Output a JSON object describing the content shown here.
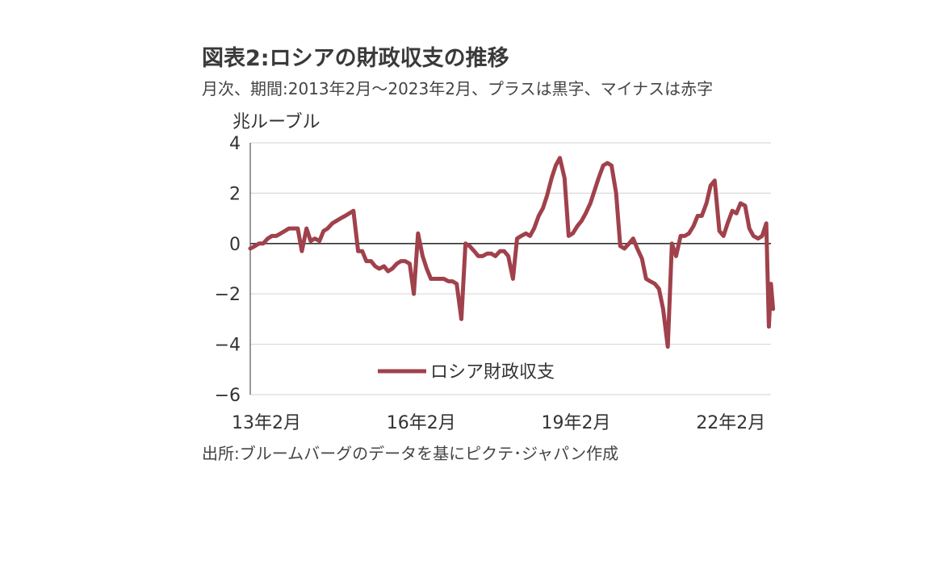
{
  "title": "図表2:ロシアの財政収支の推移",
  "subtitle": "月次、期間:2013年2月～2023年2月、プラスは黒字、マイナスは赤字",
  "source": "出所:ブルームバーグのデータを基にピクテ･ジャパン作成",
  "colors": {
    "series": "#a0414b",
    "grid": "#d9d9d9",
    "axis": "#555555",
    "zero": "#333333"
  },
  "chart_data": {
    "type": "line",
    "unit_label": "兆ルーブル",
    "xlim": [
      2013.08,
      2023.17
    ],
    "ylim": [
      -6,
      4
    ],
    "yticks": [
      4,
      2,
      0,
      -2,
      -4,
      -6
    ],
    "ytick_labels": [
      "4",
      "2",
      "0",
      "−2",
      "−4",
      "−6"
    ],
    "xticks": [
      {
        "x": 2013.08,
        "label": "13年2月"
      },
      {
        "x": 2016.08,
        "label": "16年2月"
      },
      {
        "x": 2019.08,
        "label": "19年2月"
      },
      {
        "x": 2022.08,
        "label": "22年2月"
      }
    ],
    "grid": true,
    "legend_position": "bottom-center",
    "series": [
      {
        "name": "ロシア財政収支",
        "points": [
          [
            2013.08,
            -0.2
          ],
          [
            2013.17,
            -0.1
          ],
          [
            2013.25,
            0.0
          ],
          [
            2013.33,
            0.0
          ],
          [
            2013.42,
            0.2
          ],
          [
            2013.5,
            0.3
          ],
          [
            2013.58,
            0.3
          ],
          [
            2013.67,
            0.4
          ],
          [
            2013.75,
            0.5
          ],
          [
            2013.83,
            0.6
          ],
          [
            2013.92,
            0.6
          ],
          [
            2014.0,
            0.6
          ],
          [
            2014.08,
            -0.3
          ],
          [
            2014.17,
            0.6
          ],
          [
            2014.25,
            0.1
          ],
          [
            2014.33,
            0.2
          ],
          [
            2014.42,
            0.1
          ],
          [
            2014.5,
            0.5
          ],
          [
            2014.58,
            0.6
          ],
          [
            2014.67,
            0.8
          ],
          [
            2014.75,
            0.9
          ],
          [
            2014.83,
            1.0
          ],
          [
            2014.92,
            1.1
          ],
          [
            2015.0,
            1.2
          ],
          [
            2015.08,
            1.3
          ],
          [
            2015.17,
            -0.3
          ],
          [
            2015.25,
            -0.3
          ],
          [
            2015.33,
            -0.7
          ],
          [
            2015.42,
            -0.7
          ],
          [
            2015.5,
            -0.9
          ],
          [
            2015.58,
            -1.0
          ],
          [
            2015.67,
            -0.9
          ],
          [
            2015.75,
            -1.1
          ],
          [
            2015.83,
            -1.0
          ],
          [
            2015.92,
            -0.8
          ],
          [
            2016.0,
            -0.7
          ],
          [
            2016.08,
            -0.7
          ],
          [
            2016.17,
            -0.8
          ],
          [
            2016.25,
            -2.0
          ],
          [
            2016.33,
            0.4
          ],
          [
            2016.42,
            -0.5
          ],
          [
            2016.5,
            -1.0
          ],
          [
            2016.58,
            -1.4
          ],
          [
            2016.67,
            -1.4
          ],
          [
            2016.75,
            -1.4
          ],
          [
            2016.83,
            -1.4
          ],
          [
            2016.92,
            -1.5
          ],
          [
            2017.0,
            -1.5
          ],
          [
            2017.08,
            -1.6
          ],
          [
            2017.17,
            -3.0
          ],
          [
            2017.25,
            0.0
          ],
          [
            2017.33,
            -0.1
          ],
          [
            2017.42,
            -0.3
          ],
          [
            2017.5,
            -0.5
          ],
          [
            2017.58,
            -0.5
          ],
          [
            2017.67,
            -0.4
          ],
          [
            2017.75,
            -0.4
          ],
          [
            2017.83,
            -0.5
          ],
          [
            2017.92,
            -0.3
          ],
          [
            2018.0,
            -0.3
          ],
          [
            2018.08,
            -0.5
          ],
          [
            2018.17,
            -1.4
          ],
          [
            2018.25,
            0.2
          ],
          [
            2018.33,
            0.3
          ],
          [
            2018.42,
            0.4
          ],
          [
            2018.5,
            0.3
          ],
          [
            2018.58,
            0.6
          ],
          [
            2018.67,
            1.1
          ],
          [
            2018.75,
            1.4
          ],
          [
            2018.83,
            1.9
          ],
          [
            2018.92,
            2.6
          ],
          [
            2019.0,
            3.1
          ],
          [
            2019.08,
            3.4
          ],
          [
            2019.17,
            2.6
          ],
          [
            2019.25,
            0.3
          ],
          [
            2019.33,
            0.4
          ],
          [
            2019.42,
            0.7
          ],
          [
            2019.5,
            0.9
          ],
          [
            2019.58,
            1.2
          ],
          [
            2019.67,
            1.6
          ],
          [
            2019.75,
            2.1
          ],
          [
            2019.83,
            2.6
          ],
          [
            2019.92,
            3.1
          ],
          [
            2020.0,
            3.2
          ],
          [
            2020.08,
            3.1
          ],
          [
            2020.17,
            2.0
          ],
          [
            2020.25,
            -0.1
          ],
          [
            2020.33,
            -0.2
          ],
          [
            2020.42,
            0.0
          ],
          [
            2020.5,
            0.2
          ],
          [
            2020.58,
            -0.2
          ],
          [
            2020.67,
            -0.6
          ],
          [
            2020.75,
            -1.4
          ],
          [
            2020.83,
            -1.5
          ],
          [
            2020.92,
            -1.6
          ],
          [
            2021.0,
            -1.8
          ],
          [
            2021.08,
            -2.6
          ],
          [
            2021.17,
            -4.1
          ],
          [
            2021.25,
            0.0
          ],
          [
            2021.33,
            -0.5
          ],
          [
            2021.42,
            0.3
          ],
          [
            2021.5,
            0.3
          ],
          [
            2021.58,
            0.4
          ],
          [
            2021.67,
            0.7
          ],
          [
            2021.75,
            1.1
          ],
          [
            2021.83,
            1.1
          ],
          [
            2021.92,
            1.6
          ],
          [
            2022.0,
            2.3
          ],
          [
            2022.08,
            2.5
          ],
          [
            2022.17,
            0.5
          ],
          [
            2022.25,
            0.3
          ],
          [
            2022.33,
            0.8
          ],
          [
            2022.42,
            1.3
          ],
          [
            2022.5,
            1.2
          ],
          [
            2022.58,
            1.6
          ],
          [
            2022.67,
            1.5
          ],
          [
            2022.75,
            0.6
          ],
          [
            2022.83,
            0.3
          ],
          [
            2022.92,
            0.2
          ],
          [
            2023.0,
            0.3
          ],
          [
            2023.08,
            0.8
          ],
          [
            2023.13,
            -3.3
          ],
          [
            2023.17,
            -1.6
          ],
          [
            2023.21,
            -2.6
          ]
        ]
      }
    ]
  }
}
